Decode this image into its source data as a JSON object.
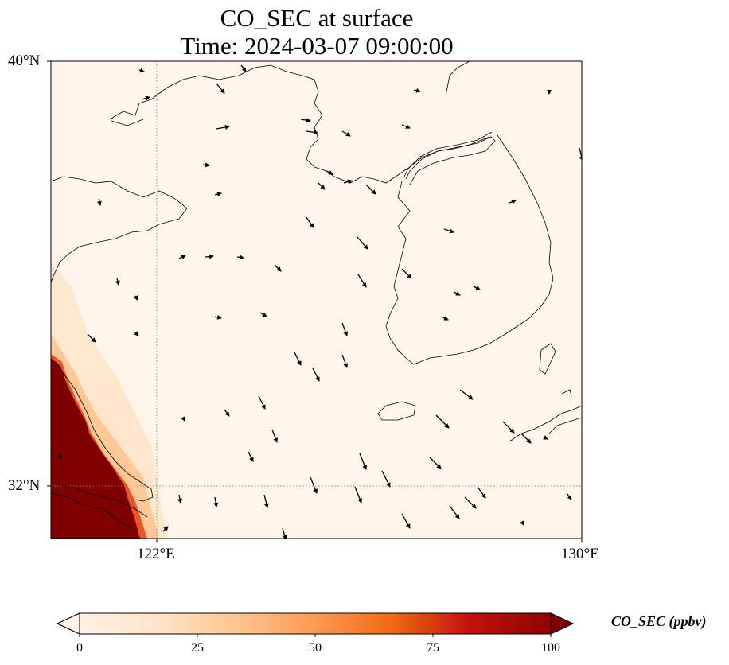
{
  "title": {
    "line1": "CO_SEC at surface",
    "line2": "Time: 2024-03-07 09:00:00"
  },
  "map": {
    "lat_range": [
      31,
      40
    ],
    "lon_range": [
      120,
      130
    ],
    "lat_ticks": [
      "40°N",
      "32°N"
    ],
    "lon_ticks": [
      "122°E",
      "130°E"
    ],
    "gridlines": "dotted",
    "plume_color": "#800000",
    "background_color": "#fff5eb"
  },
  "colorbar": {
    "label": "CO_SEC (ppbv)",
    "ticks": [
      "0",
      "25",
      "50",
      "75",
      "100"
    ],
    "min": 0,
    "max": 100,
    "extend": "both",
    "colormap": [
      "#fff5eb",
      "#fdd9b5",
      "#fdae6b",
      "#f16913",
      "#d4171b",
      "#a50f15",
      "#7f0000"
    ]
  }
}
